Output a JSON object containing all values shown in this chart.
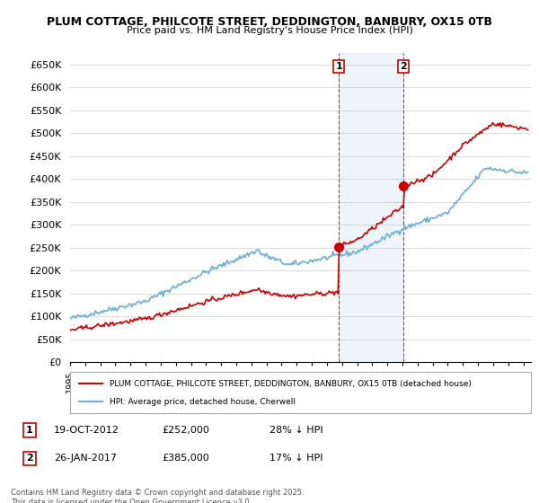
{
  "title1": "PLUM COTTAGE, PHILCOTE STREET, DEDDINGTON, BANBURY, OX15 0TB",
  "title2": "Price paid vs. HM Land Registry's House Price Index (HPI)",
  "ylabel_ticks": [
    "£0",
    "£50K",
    "£100K",
    "£150K",
    "£200K",
    "£250K",
    "£300K",
    "£350K",
    "£400K",
    "£450K",
    "£500K",
    "£550K",
    "£600K",
    "£650K"
  ],
  "ytick_values": [
    0,
    50000,
    100000,
    150000,
    200000,
    250000,
    300000,
    350000,
    400000,
    450000,
    500000,
    550000,
    600000,
    650000
  ],
  "xlim_start": 1995.0,
  "xlim_end": 2025.5,
  "ylim_min": 0,
  "ylim_max": 675000,
  "hpi_color": "#6baed6",
  "price_color": "#cc0000",
  "dashed_color": "#cc0000",
  "marker1_date": 2012.8,
  "marker2_date": 2017.07,
  "sale1_price": 252000,
  "sale2_price": 385000,
  "sale1_label": "19-OCT-2012",
  "sale2_label": "26-JAN-2017",
  "sale1_price_str": "£252,000",
  "sale2_price_str": "£385,000",
  "sale1_pct": "28% ↓ HPI",
  "sale2_pct": "17% ↓ HPI",
  "legend_red": "PLUM COTTAGE, PHILCOTE STREET, DEDDINGTON, BANBURY, OX15 0TB (detached house)",
  "legend_blue": "HPI: Average price, detached house, Cherwell",
  "footer": "Contains HM Land Registry data © Crown copyright and database right 2025.\nThis data is licensed under the Open Government Licence v3.0.",
  "plot_bg": "#ffffff"
}
